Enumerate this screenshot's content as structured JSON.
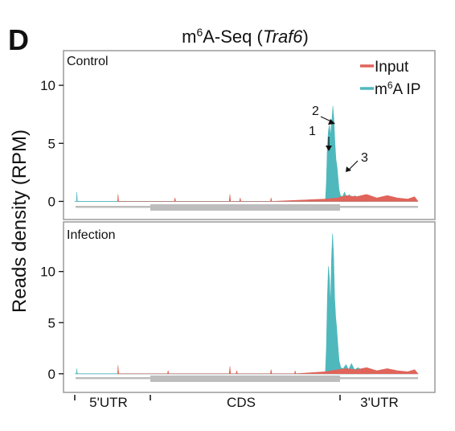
{
  "panel_letter": "D",
  "colors": {
    "input": "#e0645a",
    "ip": "#4fb8bd",
    "gene": "#bdbdbd",
    "frame": "#9a9a9a"
  },
  "chart_data": {
    "type": "area",
    "title": {
      "prefix": "m",
      "sup": "6",
      "mid": "A-Seq (",
      "gene": "Traf6",
      "suffix": ")"
    },
    "ylabel": "Reads density (RPM)",
    "legend": {
      "placement": "top-right",
      "entries": [
        {
          "key": "input",
          "label": "Input"
        },
        {
          "key": "ip",
          "label_prefix": "m",
          "label_sup": "6",
          "label_suffix": "A IP"
        }
      ]
    },
    "gene_regions": [
      "5'UTR",
      "CDS",
      "3'UTR"
    ],
    "panels": [
      {
        "name": "Control",
        "ylim": [
          -0.8,
          12.5
        ],
        "yticks": [
          "0",
          "5",
          "10"
        ],
        "annotations": [
          "1",
          "2",
          "3"
        ],
        "series": {
          "ip": [
            {
              "x": 0.5,
              "y": 0
            },
            {
              "x": 0.6,
              "y": 0.8
            },
            {
              "x": 0.75,
              "y": 0
            },
            {
              "x": 73.0,
              "y": 0
            },
            {
              "x": 73.3,
              "y": 1.6
            },
            {
              "x": 73.6,
              "y": 4.8
            },
            {
              "x": 73.9,
              "y": 6.1
            },
            {
              "x": 74.2,
              "y": 6.6
            },
            {
              "x": 74.5,
              "y": 5.6
            },
            {
              "x": 74.7,
              "y": 6.4
            },
            {
              "x": 75.0,
              "y": 7.3
            },
            {
              "x": 75.2,
              "y": 8.2
            },
            {
              "x": 75.5,
              "y": 7.0
            },
            {
              "x": 75.8,
              "y": 5.0
            },
            {
              "x": 76.1,
              "y": 3.6
            },
            {
              "x": 76.4,
              "y": 3.0
            },
            {
              "x": 76.7,
              "y": 2.0
            },
            {
              "x": 77.0,
              "y": 1.0
            },
            {
              "x": 77.4,
              "y": 0.5
            },
            {
              "x": 78.0,
              "y": 0.4
            },
            {
              "x": 78.6,
              "y": 0.8
            },
            {
              "x": 79.2,
              "y": 0.3
            },
            {
              "x": 80.0,
              "y": 0.6
            },
            {
              "x": 80.8,
              "y": 0.2
            },
            {
              "x": 81.6,
              "y": 0.5
            },
            {
              "x": 83.0,
              "y": 0.2
            },
            {
              "x": 84.5,
              "y": 0.3
            },
            {
              "x": 86.0,
              "y": 0
            }
          ],
          "input": [
            {
              "x": 12.5,
              "y": 0
            },
            {
              "x": 12.6,
              "y": 0.6
            },
            {
              "x": 12.8,
              "y": 0
            },
            {
              "x": 29.0,
              "y": 0
            },
            {
              "x": 29.2,
              "y": 0.3
            },
            {
              "x": 29.4,
              "y": 0
            },
            {
              "x": 45.0,
              "y": 0
            },
            {
              "x": 45.2,
              "y": 0.6
            },
            {
              "x": 45.4,
              "y": 0
            },
            {
              "x": 48.0,
              "y": 0
            },
            {
              "x": 48.2,
              "y": 0.3
            },
            {
              "x": 48.4,
              "y": 0
            },
            {
              "x": 57.0,
              "y": 0
            },
            {
              "x": 57.2,
              "y": 0.3
            },
            {
              "x": 57.4,
              "y": 0
            },
            {
              "x": 73.0,
              "y": 0.2
            },
            {
              "x": 76.5,
              "y": 0.3
            },
            {
              "x": 79.0,
              "y": 0.5
            },
            {
              "x": 82.0,
              "y": 0.4
            },
            {
              "x": 85.0,
              "y": 0.6
            },
            {
              "x": 88.0,
              "y": 0.3
            },
            {
              "x": 91.0,
              "y": 0.5
            },
            {
              "x": 94.0,
              "y": 0.3
            },
            {
              "x": 97.0,
              "y": 0.2
            },
            {
              "x": 99.0,
              "y": 0.4
            },
            {
              "x": 100.0,
              "y": 0
            }
          ]
        }
      },
      {
        "name": "Infection",
        "ylim": [
          -0.8,
          14.3
        ],
        "yticks": [
          "0",
          "5",
          "10"
        ],
        "annotations": [],
        "series": {
          "ip": [
            {
              "x": 0.5,
              "y": 0
            },
            {
              "x": 0.6,
              "y": 0.5
            },
            {
              "x": 0.75,
              "y": 0
            },
            {
              "x": 73.0,
              "y": 0
            },
            {
              "x": 73.3,
              "y": 2.5
            },
            {
              "x": 73.6,
              "y": 7.5
            },
            {
              "x": 73.9,
              "y": 10.5
            },
            {
              "x": 74.2,
              "y": 9.3
            },
            {
              "x": 74.5,
              "y": 6.5
            },
            {
              "x": 74.8,
              "y": 11.2
            },
            {
              "x": 75.1,
              "y": 13.7
            },
            {
              "x": 75.4,
              "y": 11.6
            },
            {
              "x": 75.7,
              "y": 7.5
            },
            {
              "x": 76.0,
              "y": 5.6
            },
            {
              "x": 76.3,
              "y": 4.5
            },
            {
              "x": 76.6,
              "y": 3.0
            },
            {
              "x": 77.0,
              "y": 1.3
            },
            {
              "x": 77.5,
              "y": 0.6
            },
            {
              "x": 78.2,
              "y": 0.5
            },
            {
              "x": 79.0,
              "y": 0.9
            },
            {
              "x": 79.8,
              "y": 0.4
            },
            {
              "x": 80.6,
              "y": 1.0
            },
            {
              "x": 81.5,
              "y": 0.4
            },
            {
              "x": 82.5,
              "y": 0.6
            },
            {
              "x": 84.0,
              "y": 0.3
            },
            {
              "x": 86.0,
              "y": 0
            }
          ],
          "input": [
            {
              "x": 12.5,
              "y": 0
            },
            {
              "x": 12.6,
              "y": 0.8
            },
            {
              "x": 12.8,
              "y": 0
            },
            {
              "x": 27.0,
              "y": 0
            },
            {
              "x": 27.2,
              "y": 0.3
            },
            {
              "x": 27.4,
              "y": 0
            },
            {
              "x": 45.0,
              "y": 0
            },
            {
              "x": 45.2,
              "y": 0.7
            },
            {
              "x": 45.4,
              "y": 0
            },
            {
              "x": 47.0,
              "y": 0
            },
            {
              "x": 47.2,
              "y": 0.3
            },
            {
              "x": 47.4,
              "y": 0
            },
            {
              "x": 57.0,
              "y": 0
            },
            {
              "x": 57.2,
              "y": 0.4
            },
            {
              "x": 57.4,
              "y": 0
            },
            {
              "x": 64.0,
              "y": 0
            },
            {
              "x": 64.2,
              "y": 0.3
            },
            {
              "x": 64.4,
              "y": 0
            },
            {
              "x": 73.0,
              "y": 0.2
            },
            {
              "x": 76.5,
              "y": 0.4
            },
            {
              "x": 79.0,
              "y": 0.5
            },
            {
              "x": 82.0,
              "y": 0.4
            },
            {
              "x": 85.0,
              "y": 0.6
            },
            {
              "x": 88.0,
              "y": 0.3
            },
            {
              "x": 91.0,
              "y": 0.5
            },
            {
              "x": 94.0,
              "y": 0.3
            },
            {
              "x": 97.0,
              "y": 0.2
            },
            {
              "x": 99.0,
              "y": 0.4
            },
            {
              "x": 100.0,
              "y": 0
            }
          ]
        }
      }
    ]
  }
}
